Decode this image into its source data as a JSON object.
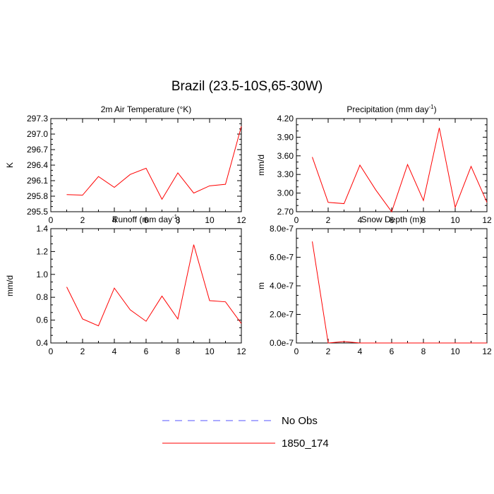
{
  "page": {
    "title": "Brazil (23.5-10S,65-30W)"
  },
  "legend": {
    "items": [
      {
        "label": "No Obs",
        "color": "#5555ff",
        "style": "dashed"
      },
      {
        "label": "1850_174",
        "color": "#ff0000",
        "style": "solid"
      }
    ]
  },
  "chart_data": [
    {
      "type": "line",
      "title": "2m Air Temperature (°K)",
      "ylabel": "K",
      "xlabel": "",
      "xlim": [
        0,
        12
      ],
      "ylim": [
        295.5,
        297.3
      ],
      "xticks": [
        "0",
        "2",
        "4",
        "6",
        "8",
        "10",
        "12"
      ],
      "yticks": [
        "295.5",
        "295.8",
        "296.1",
        "296.4",
        "296.7",
        "297.0",
        "297.3"
      ],
      "x": [
        1,
        2,
        3,
        4,
        5,
        6,
        7,
        8,
        9,
        10,
        11,
        12
      ],
      "series": [
        {
          "name": "1850_174",
          "values": [
            295.83,
            295.82,
            296.18,
            295.97,
            296.22,
            296.34,
            295.74,
            296.25,
            295.86,
            296.0,
            296.03,
            297.15
          ]
        }
      ]
    },
    {
      "type": "line",
      "title": "Precipitation (mm day-1)",
      "ylabel": "mm/d",
      "xlabel": "",
      "xlim": [
        0,
        12
      ],
      "ylim": [
        2.7,
        4.2
      ],
      "xticks": [
        "0",
        "2",
        "4",
        "6",
        "8",
        "10",
        "12"
      ],
      "yticks": [
        "2.70",
        "3.00",
        "3.30",
        "3.60",
        "3.90",
        "4.20"
      ],
      "x": [
        1,
        2,
        3,
        4,
        5,
        6,
        7,
        8,
        9,
        10,
        11,
        12
      ],
      "series": [
        {
          "name": "1850_174",
          "values": [
            3.58,
            2.85,
            2.83,
            3.45,
            3.05,
            2.7,
            3.46,
            2.88,
            4.05,
            2.77,
            3.43,
            2.85
          ]
        }
      ]
    },
    {
      "type": "line",
      "title": "Runoff (mm day-1)",
      "ylabel": "mm/d",
      "xlabel": "",
      "xlim": [
        0,
        12
      ],
      "ylim": [
        0.4,
        1.4
      ],
      "xticks": [
        "0",
        "2",
        "4",
        "6",
        "8",
        "10",
        "12"
      ],
      "yticks": [
        "0.4",
        "0.6",
        "0.8",
        "1.0",
        "1.2",
        "1.4"
      ],
      "x": [
        1,
        2,
        3,
        4,
        5,
        6,
        7,
        8,
        9,
        10,
        11,
        12
      ],
      "series": [
        {
          "name": "1850_174",
          "values": [
            0.89,
            0.61,
            0.55,
            0.88,
            0.69,
            0.59,
            0.81,
            0.61,
            1.26,
            0.77,
            0.76,
            0.57
          ]
        }
      ]
    },
    {
      "type": "line",
      "title": "Snow Depth (m)",
      "ylabel": "m",
      "xlabel": "",
      "xlim": [
        0,
        12
      ],
      "ylim": [
        0,
        8e-07
      ],
      "xticks": [
        "0",
        "2",
        "4",
        "6",
        "8",
        "10",
        "12"
      ],
      "yticks": [
        "0.0e-7",
        "2.0e-7",
        "4.0e-7",
        "6.0e-7",
        "8.0e-7"
      ],
      "x": [
        1,
        2,
        3,
        4,
        5,
        6,
        7,
        8,
        9,
        10,
        11,
        12
      ],
      "series": [
        {
          "name": "1850_174",
          "values": [
            7.1e-07,
            0.0,
            1e-08,
            0.0,
            0.0,
            0.0,
            0.0,
            0.0,
            0.0,
            0.0,
            0.0,
            0.0
          ]
        }
      ]
    }
  ]
}
